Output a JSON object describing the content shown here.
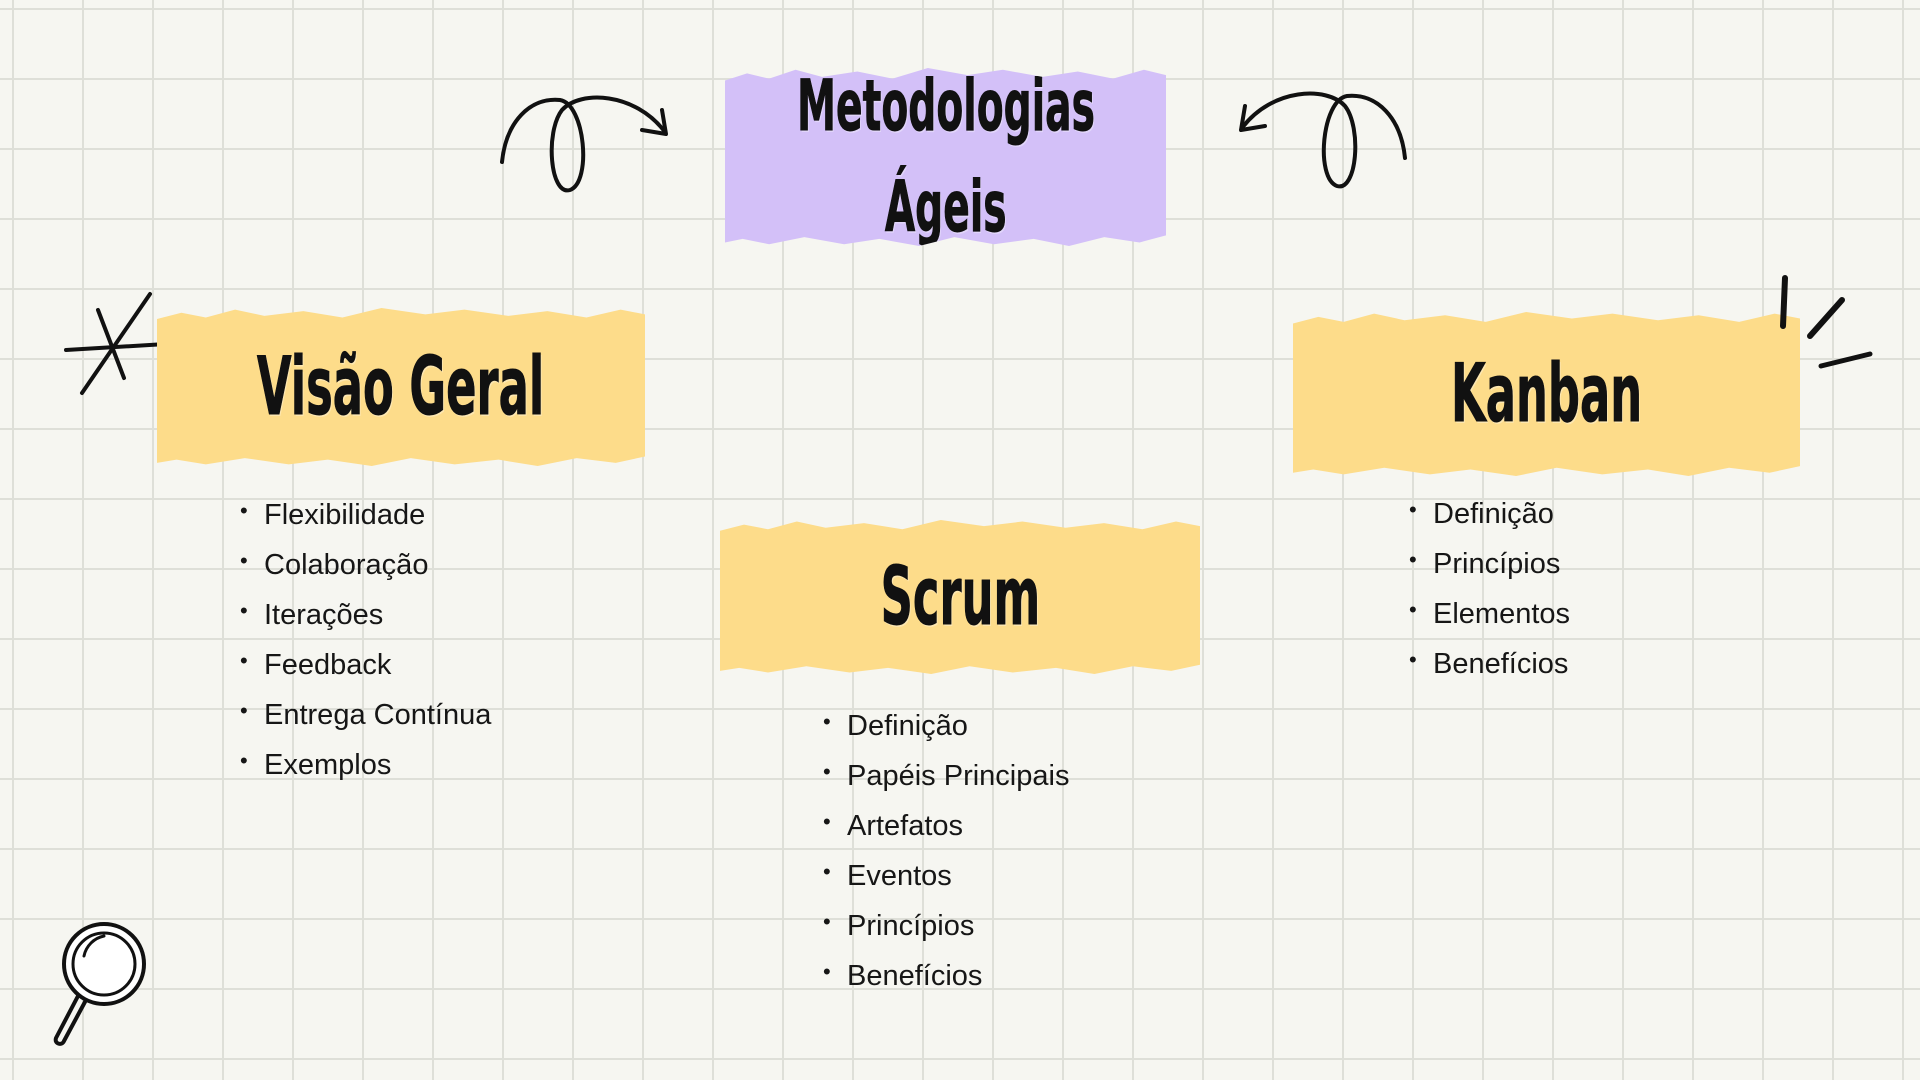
{
  "title": {
    "line1": "Metodologias",
    "line2": "Ágeis"
  },
  "sections": [
    {
      "title": "Visão Geral",
      "items": [
        "Flexibilidade",
        "Colaboração",
        "Iterações",
        "Feedback",
        "Entrega Contínua",
        "Exemplos"
      ]
    },
    {
      "title": "Scrum",
      "items": [
        "Definição",
        "Papéis Principais",
        "Artefatos",
        "Eventos",
        "Princípios",
        "Benefícios"
      ]
    },
    {
      "title": "Kanban",
      "items": [
        "Definição",
        "Princípios",
        "Elementos",
        "Benefícios"
      ]
    }
  ],
  "colors": {
    "background": "#f6f6f1",
    "grid": "#dedfd8",
    "title_paper": "#d3c0f8",
    "section_paper": "#fddc8a",
    "ink": "#111111"
  },
  "icons": [
    "curly-arrow-left-icon",
    "curly-arrow-right-icon",
    "star-doodle-icon",
    "emphasis-lines-icon",
    "magnifying-glass-icon"
  ]
}
